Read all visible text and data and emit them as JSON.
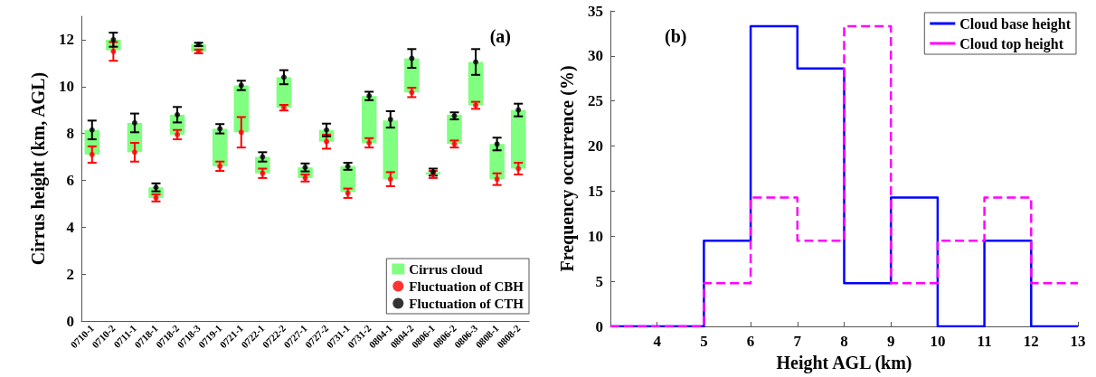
{
  "chart_data": [
    {
      "type": "bar",
      "ylabel": "Cirrus height (km, AGL)",
      "annotations": [
        "(a)"
      ],
      "legend": "bottom right",
      "grid": false,
      "categories": [
        "0710-1",
        "0710-2",
        "0711-1",
        "0718-1",
        "0718-2",
        "0718-3",
        "0719-1",
        "0721-1",
        "0722-1",
        "0722-2",
        "0727-1",
        "0727-2",
        "0731-1",
        "0731-2",
        "0804-1",
        "0804-2",
        "0806-1",
        "0806-2",
        "0806-3",
        "0808-1",
        "0808-2"
      ],
      "ylim": [
        0,
        13
      ],
      "yticks": [
        0,
        2,
        4,
        6,
        8,
        10,
        12
      ],
      "series": [
        {
          "name": "Cirrus cloud",
          "color": "#80ff80",
          "base": [
            7.1,
            11.55,
            7.2,
            5.25,
            7.95,
            11.5,
            6.6,
            8.05,
            6.3,
            9.1,
            6.1,
            7.65,
            5.5,
            7.6,
            6.05,
            9.75,
            6.25,
            7.55,
            9.2,
            6.05,
            6.5
          ],
          "values": [
            1.05,
            0.45,
            1.25,
            0.45,
            0.85,
            0.3,
            1.6,
            2.0,
            0.7,
            1.3,
            0.45,
            0.5,
            1.1,
            2.0,
            2.5,
            1.45,
            0.1,
            1.25,
            1.85,
            1.5,
            2.5
          ]
        },
        {
          "type": "scatter",
          "name": "Fluctuation of CBH",
          "color": "#ff0000",
          "x": [
            "0710-1",
            "0710-2",
            "0711-1",
            "0718-1",
            "0718-2",
            "0718-3",
            "0719-1",
            "0721-1",
            "0722-1",
            "0722-2",
            "0727-1",
            "0727-2",
            "0731-1",
            "0731-2",
            "0804-1",
            "0804-2",
            "0806-1",
            "0806-2",
            "0806-3",
            "0808-1",
            "0808-2"
          ],
          "values": [
            7.1,
            11.5,
            7.2,
            5.25,
            7.95,
            11.5,
            6.6,
            8.05,
            6.3,
            9.1,
            6.1,
            7.65,
            5.45,
            7.6,
            6.05,
            9.75,
            6.25,
            7.55,
            9.2,
            6.05,
            6.5
          ],
          "errors": [
            0.35,
            0.4,
            0.4,
            0.15,
            0.2,
            0.08,
            0.2,
            0.65,
            0.2,
            0.12,
            0.15,
            0.3,
            0.2,
            0.2,
            0.3,
            0.2,
            0.15,
            0.15,
            0.15,
            0.25,
            0.25
          ]
        },
        {
          "type": "scatter",
          "name": "Fluctuation of CTH",
          "color": "#000000",
          "x": [
            "0710-1",
            "0710-2",
            "0711-1",
            "0718-1",
            "0718-2",
            "0718-3",
            "0719-1",
            "0721-1",
            "0722-1",
            "0722-2",
            "0727-1",
            "0727-2",
            "0731-1",
            "0731-2",
            "0804-1",
            "0804-2",
            "0806-1",
            "0806-2",
            "0806-3",
            "0808-1",
            "0808-2"
          ],
          "values": [
            8.15,
            12.0,
            8.45,
            5.7,
            8.8,
            11.8,
            8.2,
            10.05,
            7.0,
            10.4,
            6.55,
            8.15,
            6.6,
            9.6,
            8.6,
            11.2,
            6.35,
            8.75,
            11.05,
            7.55,
            9.0
          ],
          "errors": [
            0.4,
            0.3,
            0.4,
            0.17,
            0.33,
            0.07,
            0.2,
            0.2,
            0.2,
            0.3,
            0.17,
            0.27,
            0.15,
            0.18,
            0.35,
            0.4,
            0.15,
            0.15,
            0.55,
            0.27,
            0.27
          ]
        }
      ]
    },
    {
      "type": "step",
      "xlabel": "Height AGL (km)",
      "ylabel": "Frequency occurrence (%)",
      "annotations": [
        "(b)"
      ],
      "legend": "top right",
      "grid": false,
      "marker": "none",
      "xlim": [
        3,
        13
      ],
      "xticks": [
        4,
        5,
        6,
        7,
        8,
        9,
        10,
        11,
        12,
        13
      ],
      "ylim": [
        0,
        35
      ],
      "yticks": [
        0,
        5,
        10,
        15,
        20,
        25,
        30,
        35
      ],
      "series": [
        {
          "name": "Cloud base height",
          "color": "#0000ff",
          "line_style": "solid",
          "x": [
            3,
            5,
            6,
            7,
            8,
            9,
            10,
            11,
            12,
            13
          ],
          "values": [
            0,
            9.5,
            33.3,
            28.6,
            4.8,
            14.3,
            0,
            9.5,
            0,
            0
          ]
        },
        {
          "name": "Cloud top height",
          "color": "#ff00ff",
          "line_style": "dashed",
          "x": [
            3,
            5,
            6,
            7,
            8,
            9,
            10,
            11,
            12,
            13
          ],
          "values": [
            0,
            4.8,
            14.3,
            9.5,
            33.3,
            4.8,
            9.5,
            14.3,
            4.8,
            4.8
          ]
        }
      ]
    }
  ]
}
